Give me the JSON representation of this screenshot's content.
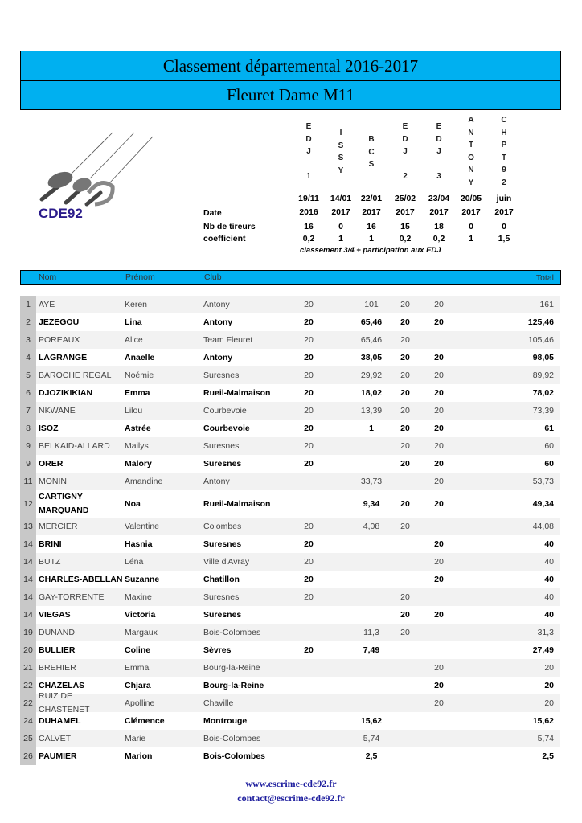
{
  "title": "Classement départemental 2016-2017",
  "subtitle": "Fleuret Dame M11",
  "logo_text": "CDE92",
  "labels": {
    "date": "Date",
    "nb_tireurs": "Nb de tireurs",
    "coefficient": "coefficient"
  },
  "events": [
    {
      "name_lines": [
        "E",
        "D",
        "J",
        "",
        "1"
      ],
      "date": [
        "19/11",
        "2016"
      ],
      "nb_tireurs": "16",
      "coefficient": "0,2"
    },
    {
      "name_lines": [
        "I",
        "S",
        "S",
        "Y"
      ],
      "date": [
        "14/01",
        "2017"
      ],
      "nb_tireurs": "0",
      "coefficient": "1"
    },
    {
      "name_lines": [
        "B",
        "C",
        "S"
      ],
      "date": [
        "22/01",
        "2017"
      ],
      "nb_tireurs": "16",
      "coefficient": "1"
    },
    {
      "name_lines": [
        "E",
        "D",
        "J",
        "",
        "2"
      ],
      "date": [
        "25/02",
        "2017"
      ],
      "nb_tireurs": "15",
      "coefficient": "0,2"
    },
    {
      "name_lines": [
        "E",
        "D",
        "J",
        "",
        "3"
      ],
      "date": [
        "23/04",
        "2017"
      ],
      "nb_tireurs": "18",
      "coefficient": "0,2"
    },
    {
      "name_lines": [
        "A",
        "N",
        "T",
        "O",
        "N",
        "Y"
      ],
      "date": [
        "20/05",
        "2017"
      ],
      "nb_tireurs": "0",
      "coefficient": "1"
    },
    {
      "name_lines": [
        "C",
        "H",
        "P",
        "T",
        "9",
        "2"
      ],
      "date": [
        "juin",
        "2017"
      ],
      "nb_tireurs": "0",
      "coefficient": "1,5"
    }
  ],
  "note": "classement 3/4  +  participation aux EDJ",
  "columns": {
    "nom": "Nom",
    "prenom": "Prénom",
    "club": "Club",
    "total": "Total"
  },
  "rows": [
    {
      "rank": "1",
      "nom": "AYE",
      "prenom": "Keren",
      "club": "Antony",
      "scores": [
        "20",
        "",
        "101",
        "20",
        "20",
        "",
        ""
      ],
      "total": "161"
    },
    {
      "rank": "2",
      "nom": "JEZEGOU",
      "prenom": "Lina",
      "club": "Antony",
      "scores": [
        "20",
        "",
        "65,46",
        "20",
        "20",
        "",
        ""
      ],
      "total": "125,46"
    },
    {
      "rank": "3",
      "nom": "POREAUX",
      "prenom": "Alice",
      "club": "Team Fleuret",
      "scores": [
        "20",
        "",
        "65,46",
        "20",
        "",
        "",
        ""
      ],
      "total": "105,46"
    },
    {
      "rank": "4",
      "nom": "LAGRANGE",
      "prenom": "Anaelle",
      "club": "Antony",
      "scores": [
        "20",
        "",
        "38,05",
        "20",
        "20",
        "",
        ""
      ],
      "total": "98,05"
    },
    {
      "rank": "5",
      "nom": "BAROCHE REGAL",
      "prenom": "Noémie",
      "club": "Suresnes",
      "scores": [
        "20",
        "",
        "29,92",
        "20",
        "20",
        "",
        ""
      ],
      "total": "89,92"
    },
    {
      "rank": "6",
      "nom": "DJOZIKIKIAN",
      "prenom": "Emma",
      "club": "Rueil-Malmaison",
      "scores": [
        "20",
        "",
        "18,02",
        "20",
        "20",
        "",
        ""
      ],
      "total": "78,02"
    },
    {
      "rank": "7",
      "nom": "NKWANE",
      "prenom": "Lilou",
      "club": "Courbevoie",
      "scores": [
        "20",
        "",
        "13,39",
        "20",
        "20",
        "",
        ""
      ],
      "total": "73,39"
    },
    {
      "rank": "8",
      "nom": "ISOZ",
      "prenom": "Astrée",
      "club": "Courbevoie",
      "scores": [
        "20",
        "",
        "1",
        "20",
        "20",
        "",
        ""
      ],
      "total": "61"
    },
    {
      "rank": "9",
      "nom": "BELKAID-ALLARD",
      "prenom": "Mailys",
      "club": "Suresnes",
      "scores": [
        "20",
        "",
        "",
        "20",
        "20",
        "",
        ""
      ],
      "total": "60"
    },
    {
      "rank": "9",
      "nom": "ORER",
      "prenom": "Malory",
      "club": "Suresnes",
      "scores": [
        "20",
        "",
        "",
        "20",
        "20",
        "",
        ""
      ],
      "total": "60"
    },
    {
      "rank": "11",
      "nom": "MONIN",
      "prenom": "Amandine",
      "club": "Antony",
      "scores": [
        "",
        "",
        "33,73",
        "",
        "20",
        "",
        ""
      ],
      "total": "53,73"
    },
    {
      "rank": "12",
      "nom": "CARTIGNY MARQUAND",
      "prenom": "Noa",
      "club": "Rueil-Malmaison",
      "scores": [
        "",
        "",
        "9,34",
        "20",
        "20",
        "",
        ""
      ],
      "total": "49,34"
    },
    {
      "rank": "13",
      "nom": "MERCIER",
      "prenom": "Valentine",
      "club": "Colombes",
      "scores": [
        "20",
        "",
        "4,08",
        "20",
        "",
        "",
        ""
      ],
      "total": "44,08"
    },
    {
      "rank": "14",
      "nom": "BRINI",
      "prenom": "Hasnia",
      "club": "Suresnes",
      "scores": [
        "20",
        "",
        "",
        "",
        "20",
        "",
        ""
      ],
      "total": "40"
    },
    {
      "rank": "14",
      "nom": "BUTZ",
      "prenom": "Léna",
      "club": "Ville d'Avray",
      "scores": [
        "20",
        "",
        "",
        "",
        "20",
        "",
        ""
      ],
      "total": "40"
    },
    {
      "rank": "14",
      "nom": "CHARLES-ABELLAN",
      "prenom": "Suzanne",
      "club": "Chatillon",
      "scores": [
        "20",
        "",
        "",
        "",
        "20",
        "",
        ""
      ],
      "total": "40"
    },
    {
      "rank": "14",
      "nom": "GAY-TORRENTE",
      "prenom": "Maxine",
      "club": "Suresnes",
      "scores": [
        "20",
        "",
        "",
        "20",
        "",
        "",
        ""
      ],
      "total": "40"
    },
    {
      "rank": "14",
      "nom": "VIEGAS",
      "prenom": "Victoria",
      "club": "Suresnes",
      "scores": [
        "",
        "",
        "",
        "20",
        "20",
        "",
        ""
      ],
      "total": "40"
    },
    {
      "rank": "19",
      "nom": "DUNAND",
      "prenom": "Margaux",
      "club": "Bois-Colombes",
      "scores": [
        "",
        "",
        "11,3",
        "20",
        "",
        "",
        ""
      ],
      "total": "31,3"
    },
    {
      "rank": "20",
      "nom": "BULLIER",
      "prenom": "Coline",
      "club": "Sèvres",
      "scores": [
        "20",
        "",
        "7,49",
        "",
        "",
        "",
        ""
      ],
      "total": "27,49"
    },
    {
      "rank": "21",
      "nom": "BREHIER",
      "prenom": "Emma",
      "club": "Bourg-la-Reine",
      "scores": [
        "",
        "",
        "",
        "",
        "20",
        "",
        ""
      ],
      "total": "20"
    },
    {
      "rank": "22",
      "nom": "CHAZELAS",
      "prenom": "Chjara",
      "club": "Bourg-la-Reine",
      "scores": [
        "",
        "",
        "",
        "",
        "20",
        "",
        ""
      ],
      "total": "20"
    },
    {
      "rank": "22",
      "nom": "RUIZ DE CHASTENET",
      "prenom": "Apolline",
      "club": "Chaville",
      "scores": [
        "",
        "",
        "",
        "",
        "20",
        "",
        ""
      ],
      "total": "20"
    },
    {
      "rank": "24",
      "nom": "DUHAMEL",
      "prenom": "Clémence",
      "club": "Montrouge",
      "scores": [
        "",
        "",
        "15,62",
        "",
        "",
        "",
        ""
      ],
      "total": "15,62"
    },
    {
      "rank": "25",
      "nom": "CALVET",
      "prenom": "Marie",
      "club": "Bois-Colombes",
      "scores": [
        "",
        "",
        "5,74",
        "",
        "",
        "",
        ""
      ],
      "total": "5,74"
    },
    {
      "rank": "26",
      "nom": "PAUMIER",
      "prenom": "Marion",
      "club": "Bois-Colombes",
      "scores": [
        "",
        "",
        "2,5",
        "",
        "",
        "",
        ""
      ],
      "total": "2,5"
    }
  ],
  "footer": {
    "website": "www.escrime-cde92.fr",
    "email": "contact@escrime-cde92.fr"
  },
  "colors": {
    "header_blue": "#00b0f0",
    "footer_text": "#1e1e9e"
  }
}
